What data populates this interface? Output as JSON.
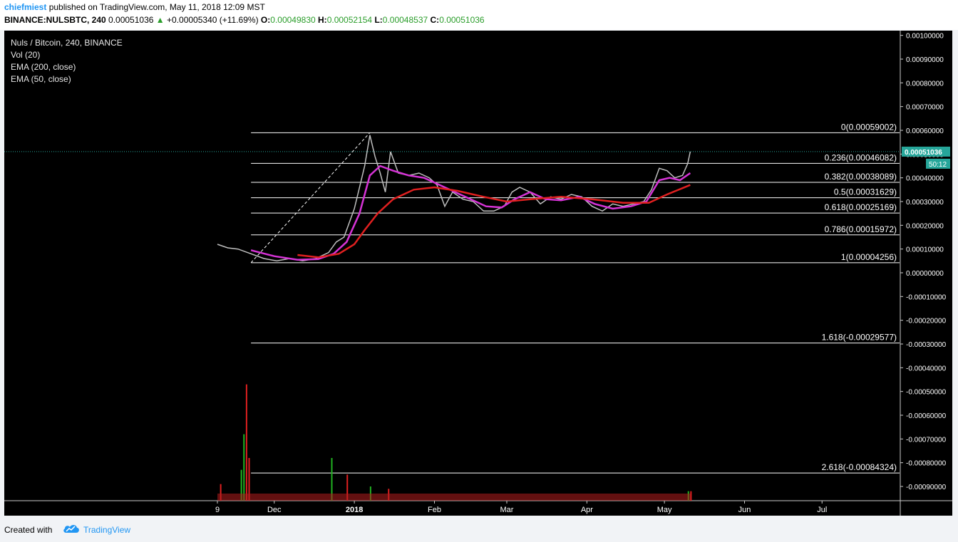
{
  "header": {
    "author": "chiefmiest",
    "published_text": "published on TradingView.com, May 11, 2018 12:09 MST",
    "symbol": "BINANCE:NULSBTC, 240",
    "last": "0.00051036",
    "change": "+0.00005340 (+11.69%)",
    "o_label": "O:",
    "o": "0.00049830",
    "h_label": "H:",
    "h": "0.00052154",
    "l_label": "L:",
    "l": "0.00048537",
    "c_label": "C:",
    "c": "0.00051036"
  },
  "legend": {
    "title": "Nuls / Bitcoin, 240, BINANCE",
    "items": [
      "Vol (20)",
      "EMA (200, close)",
      "EMA (50, close)"
    ]
  },
  "current_price": {
    "label": "0.00051036",
    "countdown": "50:12"
  },
  "footer": {
    "created": "Created with",
    "brand": "TradingView"
  },
  "colors": {
    "background": "#000000",
    "ema50": "#d633d6",
    "ema200": "#e02020",
    "fib": "#ffffff",
    "current_price": "#26a69a"
  },
  "chart_data": {
    "type": "line",
    "title": "Nuls / Bitcoin, 240, BINANCE",
    "ylim": [
      -0.00096,
      0.00102
    ],
    "y_ticks": [
      "0.00100000",
      "0.00090000",
      "0.00080000",
      "0.00070000",
      "0.00060000",
      "0.00050000",
      "0.00040000",
      "0.00030000",
      "0.00020000",
      "0.00010000",
      "0.00000000",
      "-0.00010000",
      "-0.00020000",
      "-0.00030000",
      "-0.00040000",
      "-0.00050000",
      "-0.00060000",
      "-0.00070000",
      "-0.00080000",
      "-0.00090000"
    ],
    "y_tick_values": [
      0.001,
      0.0009,
      0.0008,
      0.0007,
      0.0006,
      0.0005,
      0.0004,
      0.0003,
      0.0002,
      0.0001,
      0,
      -0.0001,
      -0.0002,
      -0.0003,
      -0.0004,
      -0.0005,
      -0.0006,
      -0.0007,
      -0.0008,
      -0.0009
    ],
    "x_range": [
      "2017-11-09",
      "2018-07-31"
    ],
    "x_ticks": [
      {
        "label": "9",
        "date": "2017-11-09"
      },
      {
        "label": "Dec",
        "date": "2017-12-01"
      },
      {
        "label": "2018",
        "date": "2018-01-01"
      },
      {
        "label": "Feb",
        "date": "2018-02-01"
      },
      {
        "label": "Mar",
        "date": "2018-03-01"
      },
      {
        "label": "Apr",
        "date": "2018-04-01"
      },
      {
        "label": "May",
        "date": "2018-05-01"
      },
      {
        "label": "Jun",
        "date": "2018-06-01"
      },
      {
        "label": "Jul",
        "date": "2018-07-01"
      }
    ],
    "fib_start_date": "2017-11-22",
    "fib_end_date": "2018-07-31",
    "fib_levels": [
      {
        "label": "0(0.00059002)",
        "value": 0.00059002
      },
      {
        "label": "0.236(0.00046082)",
        "value": 0.00046082
      },
      {
        "label": "0.382(0.00038089)",
        "value": 0.00038089
      },
      {
        "label": "0.5(0.00031629)",
        "value": 0.00031629
      },
      {
        "label": "0.618(0.00025169)",
        "value": 0.00025169
      },
      {
        "label": "0.786(0.00015972)",
        "value": 0.00015972
      },
      {
        "label": "1(0.00004256)",
        "value": 4.256e-05
      },
      {
        "label": "1.618(-0.00029577)",
        "value": -0.00029577
      },
      {
        "label": "2.618(-0.00084324)",
        "value": -0.00084324
      }
    ],
    "trend_line": {
      "from": {
        "date": "2017-11-22",
        "value": 4.256e-05
      },
      "to": {
        "date": "2018-01-07",
        "value": 0.00059002
      }
    },
    "price_series": [
      {
        "date": "2017-11-09",
        "value": 0.00012
      },
      {
        "date": "2017-11-13",
        "value": 0.000105
      },
      {
        "date": "2017-11-17",
        "value": 0.0001
      },
      {
        "date": "2017-11-22",
        "value": 8e-05
      },
      {
        "date": "2017-11-27",
        "value": 6e-05
      },
      {
        "date": "2017-12-02",
        "value": 5e-05
      },
      {
        "date": "2017-12-07",
        "value": 6e-05
      },
      {
        "date": "2017-12-12",
        "value": 5e-05
      },
      {
        "date": "2017-12-17",
        "value": 6e-05
      },
      {
        "date": "2017-12-22",
        "value": 8.5e-05
      },
      {
        "date": "2017-12-25",
        "value": 0.00013
      },
      {
        "date": "2017-12-28",
        "value": 0.00015
      },
      {
        "date": "2018-01-01",
        "value": 0.00027
      },
      {
        "date": "2018-01-03",
        "value": 0.00036
      },
      {
        "date": "2018-01-05",
        "value": 0.00045
      },
      {
        "date": "2018-01-07",
        "value": 0.00058
      },
      {
        "date": "2018-01-09",
        "value": 0.00049
      },
      {
        "date": "2018-01-11",
        "value": 0.00042
      },
      {
        "date": "2018-01-13",
        "value": 0.00034
      },
      {
        "date": "2018-01-15",
        "value": 0.00051
      },
      {
        "date": "2018-01-18",
        "value": 0.00042
      },
      {
        "date": "2018-01-22",
        "value": 0.00041
      },
      {
        "date": "2018-01-26",
        "value": 0.00042
      },
      {
        "date": "2018-01-30",
        "value": 0.0004
      },
      {
        "date": "2018-02-02",
        "value": 0.00037
      },
      {
        "date": "2018-02-05",
        "value": 0.00028
      },
      {
        "date": "2018-02-08",
        "value": 0.00034
      },
      {
        "date": "2018-02-12",
        "value": 0.00031
      },
      {
        "date": "2018-02-16",
        "value": 0.0003
      },
      {
        "date": "2018-02-20",
        "value": 0.00026
      },
      {
        "date": "2018-02-24",
        "value": 0.00026
      },
      {
        "date": "2018-02-28",
        "value": 0.00028
      },
      {
        "date": "2018-03-03",
        "value": 0.00034
      },
      {
        "date": "2018-03-06",
        "value": 0.00036
      },
      {
        "date": "2018-03-10",
        "value": 0.00034
      },
      {
        "date": "2018-03-14",
        "value": 0.00029
      },
      {
        "date": "2018-03-18",
        "value": 0.00032
      },
      {
        "date": "2018-03-22",
        "value": 0.00031
      },
      {
        "date": "2018-03-26",
        "value": 0.00033
      },
      {
        "date": "2018-03-30",
        "value": 0.00032
      },
      {
        "date": "2018-04-03",
        "value": 0.00028
      },
      {
        "date": "2018-04-07",
        "value": 0.00026
      },
      {
        "date": "2018-04-11",
        "value": 0.00029
      },
      {
        "date": "2018-04-15",
        "value": 0.00028
      },
      {
        "date": "2018-04-19",
        "value": 0.00029
      },
      {
        "date": "2018-04-23",
        "value": 0.0003
      },
      {
        "date": "2018-04-26",
        "value": 0.00035
      },
      {
        "date": "2018-04-29",
        "value": 0.00044
      },
      {
        "date": "2018-05-02",
        "value": 0.00043
      },
      {
        "date": "2018-05-05",
        "value": 0.0004
      },
      {
        "date": "2018-05-08",
        "value": 0.00041
      },
      {
        "date": "2018-05-10",
        "value": 0.00046
      },
      {
        "date": "2018-05-11",
        "value": 0.00051036
      }
    ],
    "series": [
      {
        "name": "EMA (50, close)",
        "points": [
          {
            "date": "2017-11-22",
            "value": 9.5e-05
          },
          {
            "date": "2017-12-01",
            "value": 7e-05
          },
          {
            "date": "2017-12-10",
            "value": 5.5e-05
          },
          {
            "date": "2017-12-18",
            "value": 5.8e-05
          },
          {
            "date": "2017-12-24",
            "value": 8e-05
          },
          {
            "date": "2017-12-29",
            "value": 0.00013
          },
          {
            "date": "2018-01-03",
            "value": 0.00025
          },
          {
            "date": "2018-01-07",
            "value": 0.00041
          },
          {
            "date": "2018-01-11",
            "value": 0.00045
          },
          {
            "date": "2018-01-16",
            "value": 0.00043
          },
          {
            "date": "2018-01-22",
            "value": 0.00041
          },
          {
            "date": "2018-01-28",
            "value": 0.0004
          },
          {
            "date": "2018-02-03",
            "value": 0.00037
          },
          {
            "date": "2018-02-09",
            "value": 0.00034
          },
          {
            "date": "2018-02-15",
            "value": 0.00031
          },
          {
            "date": "2018-02-21",
            "value": 0.00028
          },
          {
            "date": "2018-02-27",
            "value": 0.000275
          },
          {
            "date": "2018-03-04",
            "value": 0.00031
          },
          {
            "date": "2018-03-10",
            "value": 0.00034
          },
          {
            "date": "2018-03-16",
            "value": 0.00031
          },
          {
            "date": "2018-03-22",
            "value": 0.000305
          },
          {
            "date": "2018-03-29",
            "value": 0.00032
          },
          {
            "date": "2018-04-04",
            "value": 0.00029
          },
          {
            "date": "2018-04-11",
            "value": 0.00027
          },
          {
            "date": "2018-04-18",
            "value": 0.00028
          },
          {
            "date": "2018-04-24",
            "value": 0.0003
          },
          {
            "date": "2018-04-29",
            "value": 0.00039
          },
          {
            "date": "2018-05-03",
            "value": 0.0004
          },
          {
            "date": "2018-05-07",
            "value": 0.00039
          },
          {
            "date": "2018-05-11",
            "value": 0.00042
          }
        ]
      },
      {
        "name": "EMA (200, close)",
        "points": [
          {
            "date": "2017-12-10",
            "value": 7.5e-05
          },
          {
            "date": "2017-12-18",
            "value": 6.5e-05
          },
          {
            "date": "2017-12-26",
            "value": 8e-05
          },
          {
            "date": "2018-01-01",
            "value": 0.00012
          },
          {
            "date": "2018-01-05",
            "value": 0.00018
          },
          {
            "date": "2018-01-10",
            "value": 0.00025
          },
          {
            "date": "2018-01-16",
            "value": 0.00031
          },
          {
            "date": "2018-01-24",
            "value": 0.00035
          },
          {
            "date": "2018-02-01",
            "value": 0.00036
          },
          {
            "date": "2018-02-10",
            "value": 0.000345
          },
          {
            "date": "2018-02-20",
            "value": 0.00032
          },
          {
            "date": "2018-03-01",
            "value": 0.0003
          },
          {
            "date": "2018-03-10",
            "value": 0.00031
          },
          {
            "date": "2018-03-22",
            "value": 0.00032
          },
          {
            "date": "2018-04-03",
            "value": 0.00031
          },
          {
            "date": "2018-04-15",
            "value": 0.000295
          },
          {
            "date": "2018-04-25",
            "value": 0.000295
          },
          {
            "date": "2018-05-02",
            "value": 0.00033
          },
          {
            "date": "2018-05-11",
            "value": 0.00037
          }
        ]
      }
    ],
    "volume_spikes": [
      {
        "date": "2017-11-20",
        "value": 0.00049
      },
      {
        "date": "2017-11-19",
        "value": 0.00028
      },
      {
        "date": "2017-11-21",
        "value": 0.00018
      },
      {
        "date": "2017-11-18",
        "value": 0.00013
      },
      {
        "date": "2017-11-10",
        "value": 7e-05
      },
      {
        "date": "2017-12-23",
        "value": 0.00018
      },
      {
        "date": "2017-12-29",
        "value": 0.00011
      },
      {
        "date": "2018-01-07",
        "value": 6e-05
      },
      {
        "date": "2018-01-14",
        "value": 5e-05
      },
      {
        "date": "2018-05-10",
        "value": 4e-05
      },
      {
        "date": "2018-05-11",
        "value": 4e-05
      }
    ]
  }
}
